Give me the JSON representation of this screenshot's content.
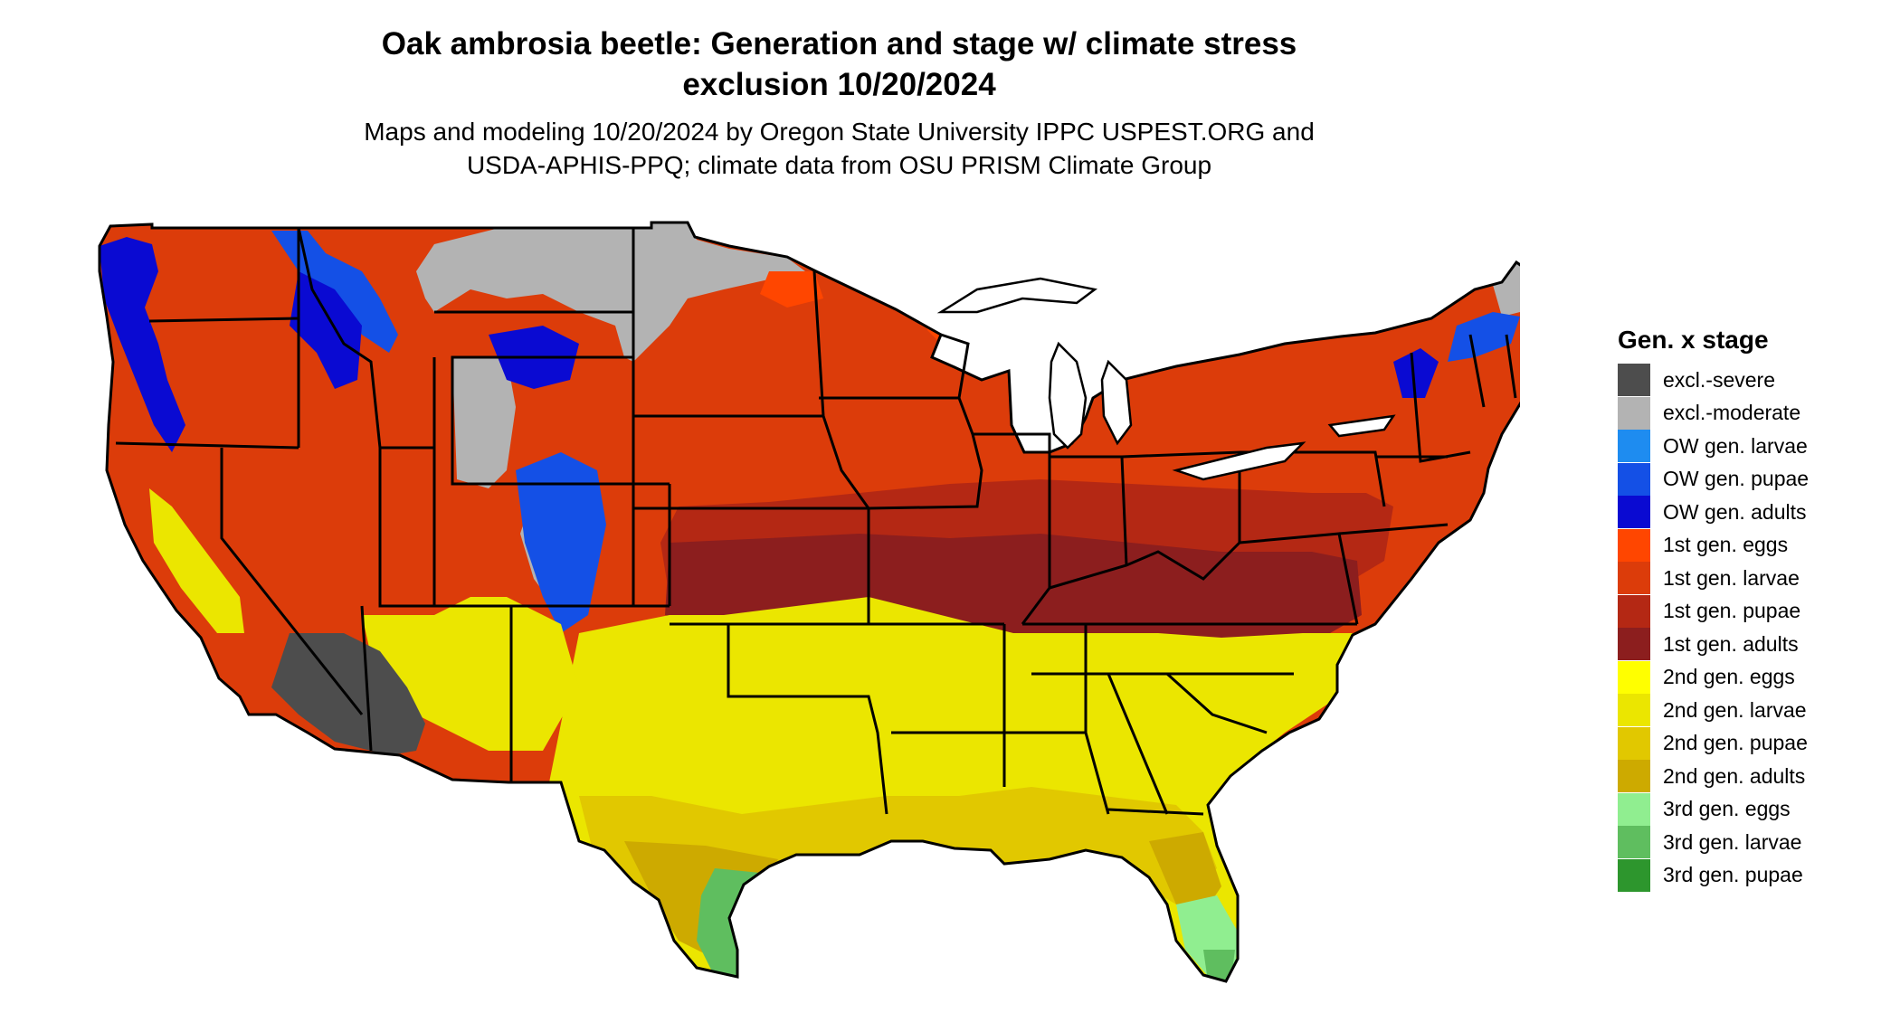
{
  "header": {
    "title_line1": "Oak ambrosia beetle: Generation and stage w/ climate stress",
    "title_line2": "exclusion 10/20/2024",
    "subtitle_line1": "Maps and modeling 10/20/2024 by Oregon State University IPPC USPEST.ORG and",
    "subtitle_line2": "USDA-APHIS-PPQ; climate data from OSU PRISM Climate Group"
  },
  "legend": {
    "title": "Gen. x stage",
    "items": [
      {
        "label": "excl.-severe",
        "color": "#4d4d4d"
      },
      {
        "label": "excl.-moderate",
        "color": "#b3b3b3"
      },
      {
        "label": "OW gen. larvae",
        "color": "#1e8cf0"
      },
      {
        "label": "OW gen. pupae",
        "color": "#1450e6"
      },
      {
        "label": "OW gen. adults",
        "color": "#0a0ad2"
      },
      {
        "label": "1st gen. eggs",
        "color": "#ff4600"
      },
      {
        "label": "1st gen. larvae",
        "color": "#dc3c0a"
      },
      {
        "label": "1st gen. pupae",
        "color": "#b42814"
      },
      {
        "label": "1st gen. adults",
        "color": "#8c1e1e"
      },
      {
        "label": "2nd gen. eggs",
        "color": "#ffff00"
      },
      {
        "label": "2nd gen. larvae",
        "color": "#ebe600"
      },
      {
        "label": "2nd gen. pupae",
        "color": "#e1c800"
      },
      {
        "label": "2nd gen. adults",
        "color": "#cdaa00"
      },
      {
        "label": "3rd gen. eggs",
        "color": "#90ee90"
      },
      {
        "label": "3rd gen. larvae",
        "color": "#5fbe5f"
      },
      {
        "label": "3rd gen. pupae",
        "color": "#2d962d"
      }
    ]
  }
}
